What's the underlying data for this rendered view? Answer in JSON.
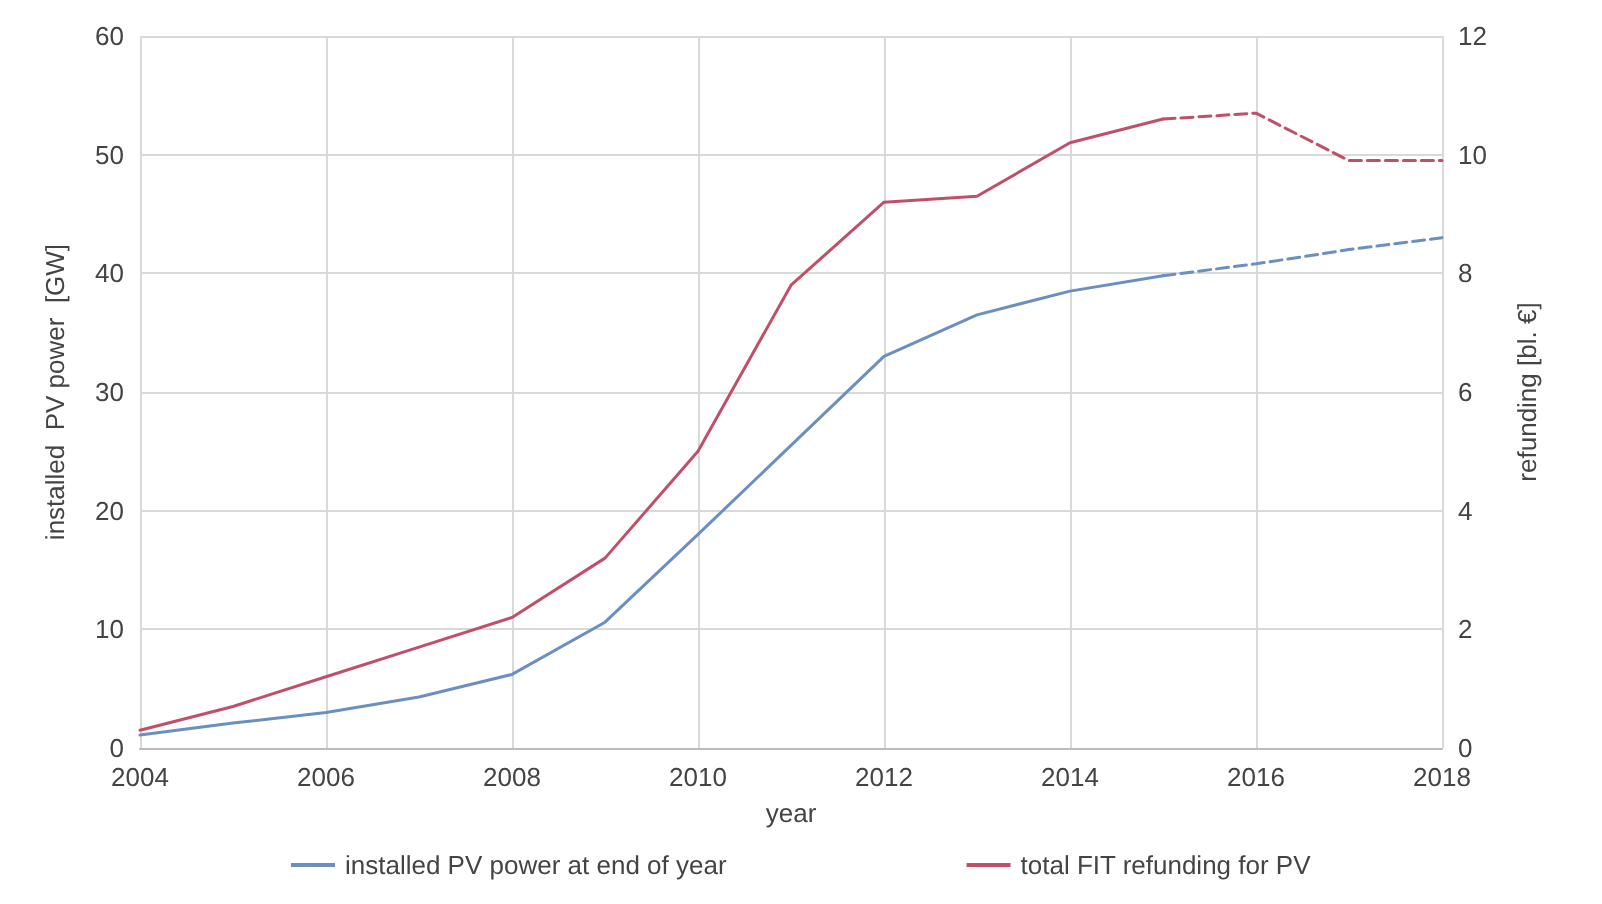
{
  "chart_data": {
    "type": "line",
    "xlabel": "year",
    "ylabel": "installed  PV power  [GW]",
    "y2label": "refunding [bl. €]",
    "xlim": [
      2004,
      2018
    ],
    "xticks": [
      2004,
      2006,
      2008,
      2010,
      2012,
      2014,
      2016,
      2018
    ],
    "ylim": [
      0,
      60
    ],
    "yticks": [
      0,
      10,
      20,
      30,
      40,
      50,
      60
    ],
    "y2lim": [
      0,
      12
    ],
    "y2ticks": [
      0,
      2,
      4,
      6,
      8,
      10,
      12
    ],
    "grid": true,
    "legend": "bottom",
    "marker": "none",
    "line_style": "solid",
    "series": [
      {
        "name": "installed PV power at end of year",
        "color": "#6b8fc0",
        "x": [
          2004,
          2005,
          2006,
          2007,
          2008,
          2009,
          2010,
          2011,
          2012,
          2013,
          2014,
          2015
        ],
        "values": [
          1.1,
          2.1,
          3,
          4.3,
          6.2,
          10.6,
          18,
          25.5,
          33,
          36.5,
          38.5,
          39.8
        ]
      },
      {
        "color": "#6b8fc0",
        "line_style": "dashed",
        "x": [
          2015,
          2016,
          2017,
          2018
        ],
        "values": [
          39.8,
          40.8,
          42,
          43
        ]
      },
      {
        "name": "total FIT refunding for PV",
        "color": "#c0506a",
        "axis": "y2",
        "x": [
          2004,
          2005,
          2006,
          2007,
          2008,
          2009,
          2010,
          2011,
          2012,
          2013,
          2014,
          2015
        ],
        "values": [
          0.3,
          0.7,
          1.2,
          1.7,
          2.2,
          3.2,
          5,
          7.8,
          9.2,
          9.3,
          10.2,
          10.6
        ]
      },
      {
        "color": "#c0506a",
        "axis": "y2",
        "line_style": "dashed",
        "x": [
          2015,
          2016,
          2017,
          2018
        ],
        "values": [
          10.6,
          10.7,
          9.9,
          9.9
        ]
      }
    ]
  }
}
